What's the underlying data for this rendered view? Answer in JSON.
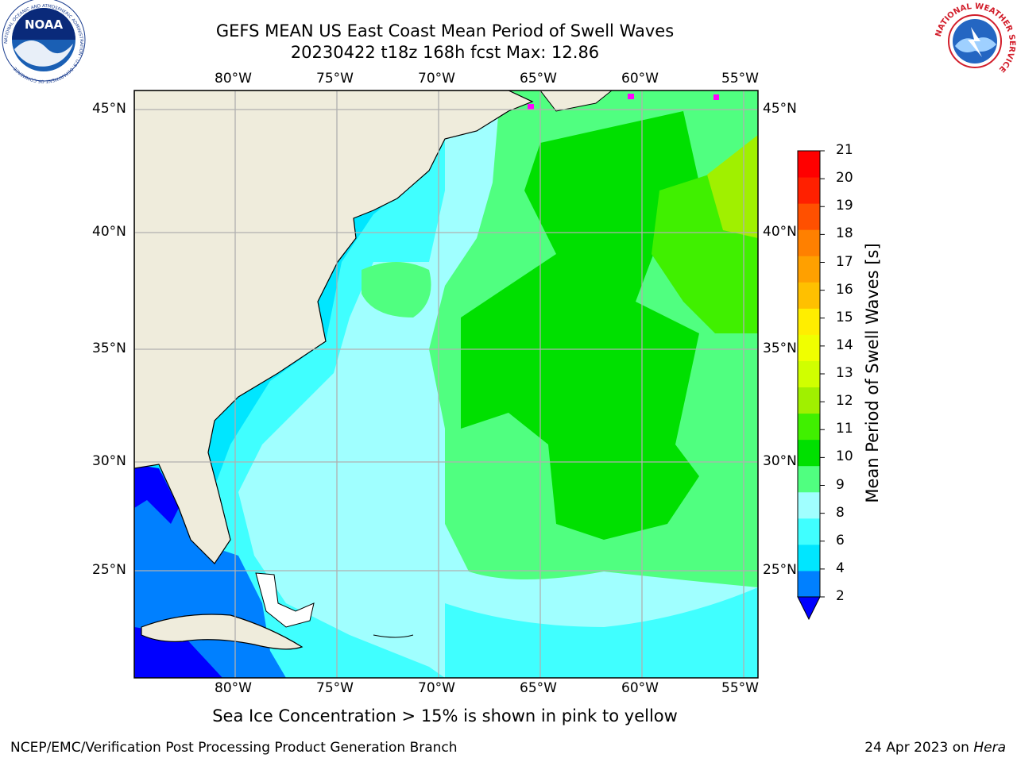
{
  "title": {
    "line1": "GEFS MEAN US East Coast Mean Period of Swell Waves",
    "line2": "20230422 t18z 168h fcst   Max: 12.86"
  },
  "map": {
    "lon_labels": [
      "80°W",
      "75°W",
      "70°W",
      "65°W",
      "60°W",
      "55°W"
    ],
    "lat_labels": [
      "45°N",
      "40°N",
      "35°N",
      "30°N",
      "25°N"
    ],
    "land_color": "#efecdc",
    "grid_color": "#b0b0b0"
  },
  "colorbar": {
    "label": "Mean Period of Swell Waves [s]",
    "ticks": [
      "2",
      "4",
      "6",
      "8",
      "9",
      "10",
      "11",
      "12",
      "13",
      "14",
      "15",
      "16",
      "17",
      "18",
      "19",
      "20",
      "21"
    ],
    "colors": [
      "#0080ff",
      "#00e6ff",
      "#40ffff",
      "#a0ffff",
      "#50ff80",
      "#00e000",
      "#40f000",
      "#a0f000",
      "#d0ff00",
      "#f0ff00",
      "#ffee00",
      "#ffc000",
      "#ffa000",
      "#ff8000",
      "#ff5000",
      "#ff2000",
      "#ff0000"
    ],
    "extend_color": "#0000ff"
  },
  "subtitle": "Sea Ice Concentration > 15% is shown in pink to yellow",
  "footer": {
    "left": "NCEP/EMC/Verification Post Processing Product Generation Branch",
    "date": "24 Apr 2023 on ",
    "host": "Hera"
  },
  "logos": {
    "noaa": "NOAA",
    "noaa_ring": "NATIONAL OCEANIC AND ATMOSPHERIC ADMINISTRATION · U.S. DEPARTMENT OF COMMERCE",
    "nws_ring": "NATIONAL WEATHER SERVICE"
  }
}
